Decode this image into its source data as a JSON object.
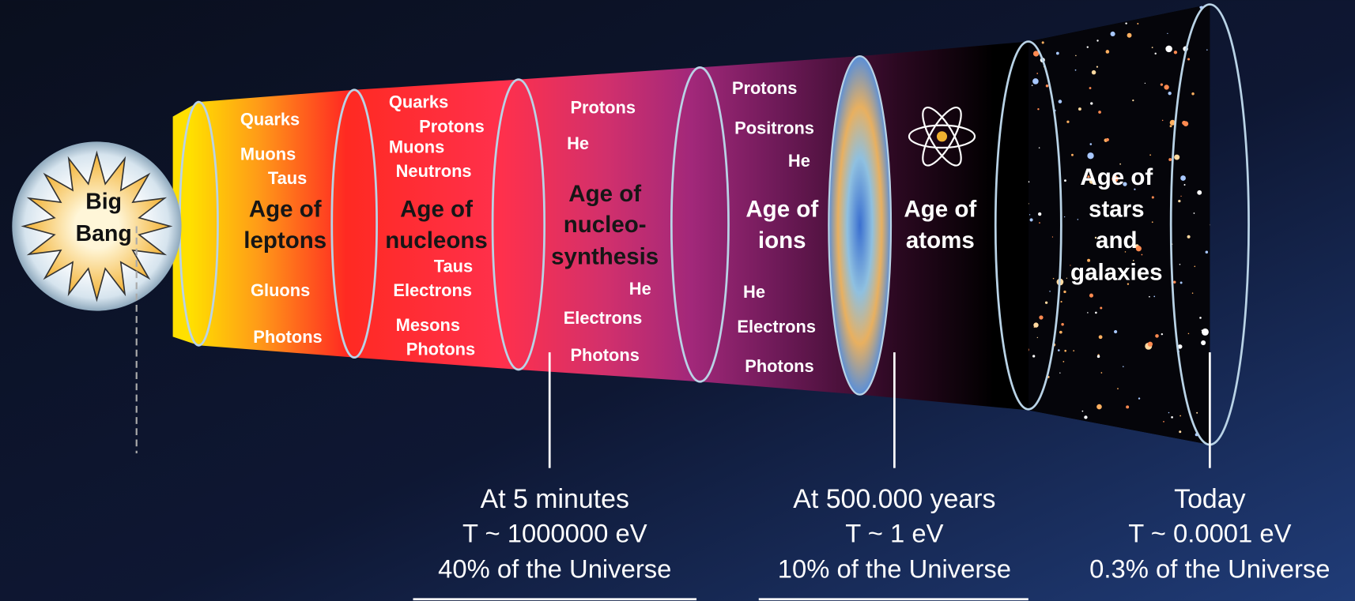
{
  "big_bang": {
    "lines": [
      "Big",
      "Bang"
    ]
  },
  "eras": [
    {
      "particles": [
        "Quarks",
        "Muons",
        "Taus",
        "Gluons",
        "Photons"
      ],
      "title": [
        "Age of",
        "leptons"
      ]
    },
    {
      "particles": [
        "Quarks",
        "Protons",
        "Muons",
        "Neutrons",
        "Taus",
        "Electrons",
        "Mesons",
        "Photons"
      ],
      "title": [
        "Age of",
        "nucleons"
      ]
    },
    {
      "particles": [
        "Protons",
        "He",
        "He",
        "Electrons",
        "Photons"
      ],
      "title": [
        "Age of",
        "nucleo-",
        "synthesis"
      ]
    },
    {
      "particles": [
        "Protons",
        "Positrons",
        "He",
        "He",
        "Electrons",
        "Photons"
      ],
      "title": [
        "Age of",
        "ions"
      ]
    },
    {
      "particles": [],
      "title": [
        "Age of",
        "atoms"
      ]
    },
    {
      "particles": [],
      "title": [
        "Age of",
        "stars",
        "and",
        "galaxies"
      ]
    }
  ],
  "callouts": [
    {
      "heading": "At 5 minutes",
      "temperature": "T ~ 1000000 eV",
      "fraction": "40% of the Universe"
    },
    {
      "heading": "At 500.000 years",
      "temperature": "T ~ 1 eV",
      "fraction": "10% of the Universe"
    },
    {
      "heading": "Today",
      "temperature": "T ~ 0.0001 eV",
      "fraction": "0.3% of the Universe"
    }
  ]
}
